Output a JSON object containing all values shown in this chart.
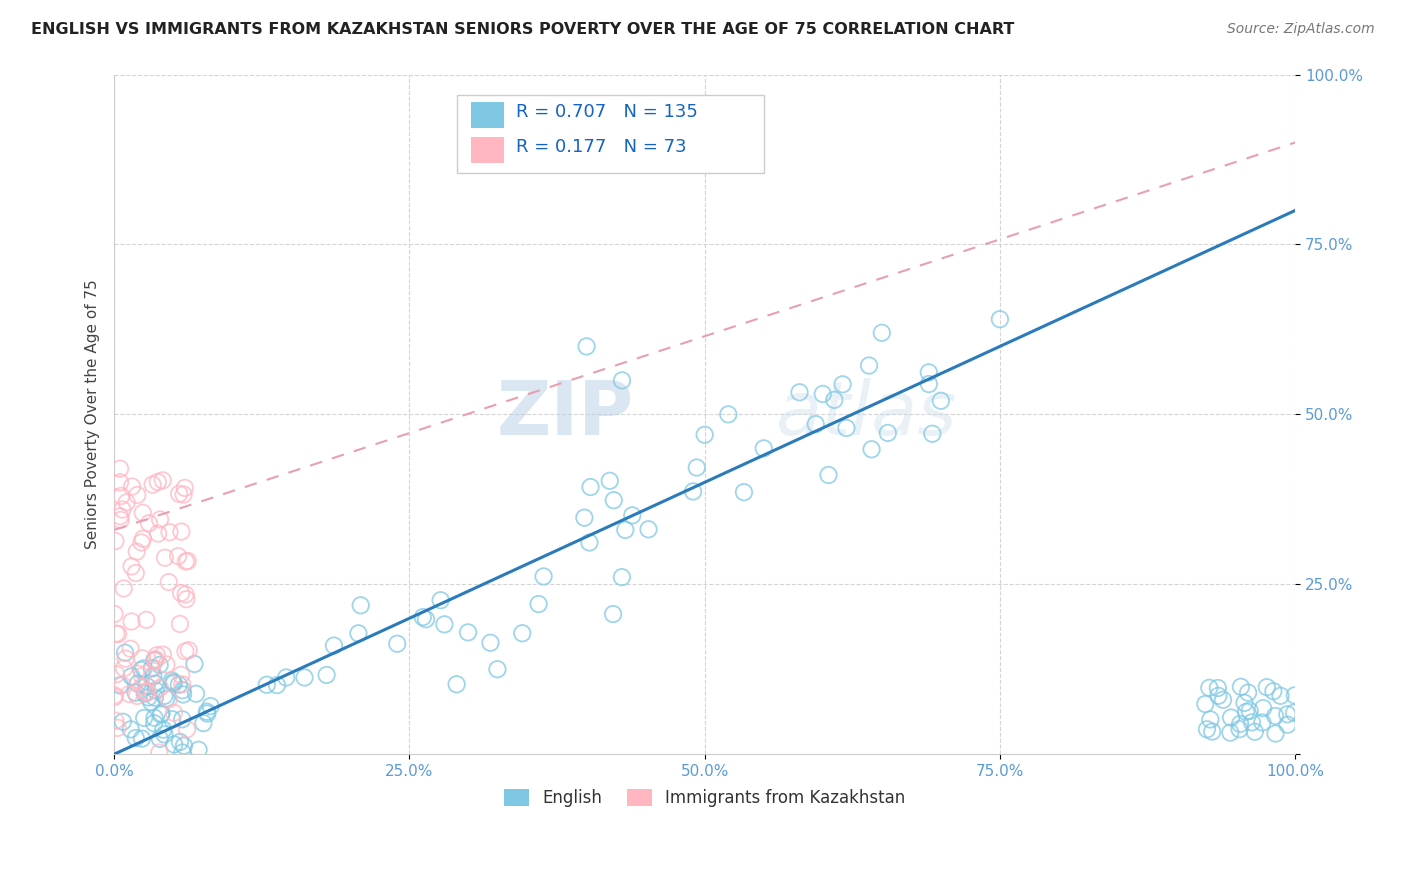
{
  "title": "ENGLISH VS IMMIGRANTS FROM KAZAKHSTAN SENIORS POVERTY OVER THE AGE OF 75 CORRELATION CHART",
  "source": "Source: ZipAtlas.com",
  "ylabel": "Seniors Poverty Over the Age of 75",
  "legend_label_1": "English",
  "legend_label_2": "Immigrants from Kazakhstan",
  "R1": 0.707,
  "N1": 135,
  "R2": 0.177,
  "N2": 73,
  "color_english": "#7ec8e3",
  "color_kazakh": "#ffb6c1",
  "trend_color_english": "#2b7bba",
  "trend_color_kazakh": "#e8a0b0",
  "watermark_zip": "ZIP",
  "watermark_atlas": "atlas",
  "background_color": "#ffffff",
  "tick_label_color": "#5b9bd5",
  "xlim": [
    0,
    1
  ],
  "ylim": [
    0,
    1
  ],
  "xticks": [
    0.0,
    0.25,
    0.5,
    0.75,
    1.0
  ],
  "yticks": [
    0.0,
    0.25,
    0.5,
    0.75,
    1.0
  ],
  "xticklabels": [
    "0.0%",
    "25.0%",
    "50.0%",
    "75.0%",
    "100.0%"
  ],
  "yticklabels_right": [
    "",
    "25.0%",
    "50.0%",
    "75.0%",
    "100.0%"
  ],
  "trend_line_start_x": 0.0,
  "trend_line_end_x": 1.0,
  "trend_eng_start_y": 0.0,
  "trend_eng_end_y": 0.8,
  "trend_kaz_start_y": 0.33,
  "trend_kaz_end_y": 0.9
}
